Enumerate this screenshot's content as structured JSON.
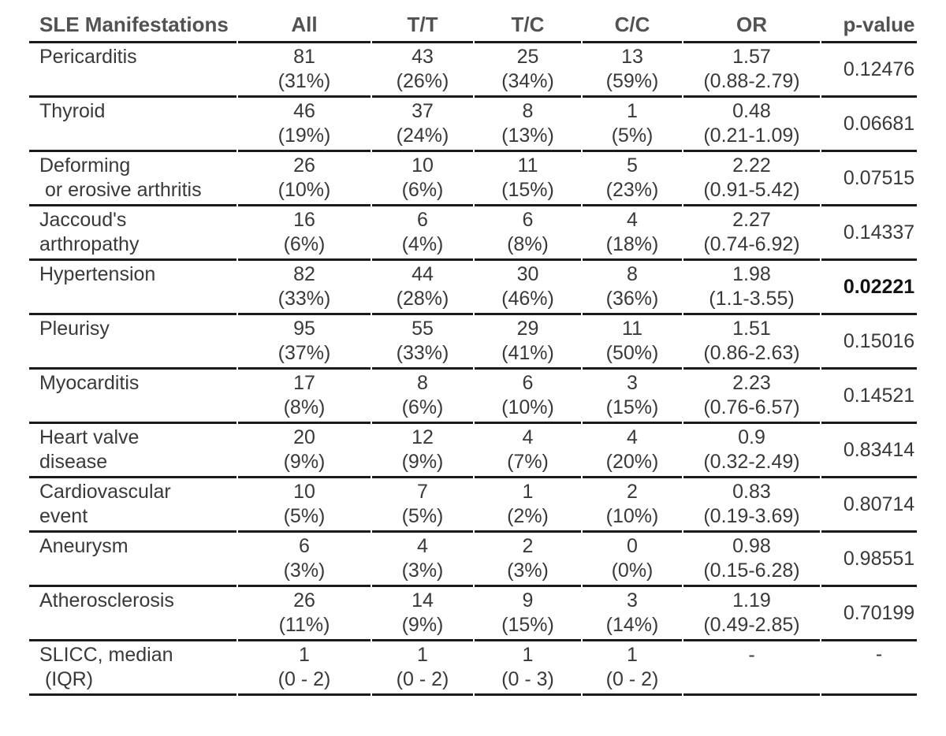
{
  "table": {
    "columns": [
      "SLE Manifestations",
      "All",
      "T/T",
      "T/C",
      "C/C",
      "OR",
      "p-value"
    ],
    "rows": [
      {
        "label_line1": "Pericarditis",
        "label_line2": "",
        "cells": [
          [
            "81",
            "(31%)"
          ],
          [
            "43",
            "(26%)"
          ],
          [
            "25",
            "(34%)"
          ],
          [
            "13",
            "(59%)"
          ],
          [
            "1.57",
            "(0.88-2.79)"
          ]
        ],
        "p": "0.12476",
        "p_bold": false
      },
      {
        "label_line1": "Thyroid",
        "label_line2": "",
        "cells": [
          [
            "46",
            "(19%)"
          ],
          [
            "37",
            "(24%)"
          ],
          [
            "8",
            "(13%)"
          ],
          [
            "1",
            "(5%)"
          ],
          [
            "0.48",
            "(0.21-1.09)"
          ]
        ],
        "p": "0.06681",
        "p_bold": false
      },
      {
        "label_line1": "Deforming",
        "label_line2": " or erosive arthritis",
        "cells": [
          [
            "26",
            "(10%)"
          ],
          [
            "10",
            "(6%)"
          ],
          [
            "11",
            "(15%)"
          ],
          [
            "5",
            "(23%)"
          ],
          [
            "2.22",
            "(0.91-5.42)"
          ]
        ],
        "p": "0.07515",
        "p_bold": false
      },
      {
        "label_line1": "Jaccoud's",
        "label_line2": "arthropathy",
        "cells": [
          [
            "16",
            "(6%)"
          ],
          [
            "6",
            "(4%)"
          ],
          [
            "6",
            "(8%)"
          ],
          [
            "4",
            "(18%)"
          ],
          [
            "2.27",
            "(0.74-6.92)"
          ]
        ],
        "p": "0.14337",
        "p_bold": false
      },
      {
        "label_line1": "Hypertension",
        "label_line2": "",
        "cells": [
          [
            "82",
            "(33%)"
          ],
          [
            "44",
            "(28%)"
          ],
          [
            "30",
            "(46%)"
          ],
          [
            "8",
            "(36%)"
          ],
          [
            "1.98",
            "(1.1-3.55)"
          ]
        ],
        "p": "0.02221",
        "p_bold": true
      },
      {
        "label_line1": "Pleurisy",
        "label_line2": "",
        "cells": [
          [
            "95",
            "(37%)"
          ],
          [
            "55",
            "(33%)"
          ],
          [
            "29",
            "(41%)"
          ],
          [
            "11",
            "(50%)"
          ],
          [
            "1.51",
            "(0.86-2.63)"
          ]
        ],
        "p": "0.15016",
        "p_bold": false
      },
      {
        "label_line1": "Myocarditis",
        "label_line2": "",
        "cells": [
          [
            "17",
            "(8%)"
          ],
          [
            "8",
            "(6%)"
          ],
          [
            "6",
            "(10%)"
          ],
          [
            "3",
            "(15%)"
          ],
          [
            "2.23",
            "(0.76-6.57)"
          ]
        ],
        "p": "0.14521",
        "p_bold": false
      },
      {
        "label_line1": "Heart valve",
        "label_line2": "disease",
        "cells": [
          [
            "20",
            "(9%)"
          ],
          [
            "12",
            "(9%)"
          ],
          [
            "4",
            "(7%)"
          ],
          [
            "4",
            "(20%)"
          ],
          [
            "0.9",
            "(0.32-2.49)"
          ]
        ],
        "p": "0.83414",
        "p_bold": false
      },
      {
        "label_line1": "Cardiovascular",
        "label_line2": "event",
        "cells": [
          [
            "10",
            "(5%)"
          ],
          [
            "7",
            "(5%)"
          ],
          [
            "1",
            "(2%)"
          ],
          [
            "2",
            "(10%)"
          ],
          [
            "0.83",
            "(0.19-3.69)"
          ]
        ],
        "p": "0.80714",
        "p_bold": false
      },
      {
        "label_line1": "Aneurysm",
        "label_line2": "",
        "cells": [
          [
            "6",
            "(3%)"
          ],
          [
            "4",
            "(3%)"
          ],
          [
            "2",
            "(3%)"
          ],
          [
            "0",
            "(0%)"
          ],
          [
            "0.98",
            "(0.15-6.28)"
          ]
        ],
        "p": "0.98551",
        "p_bold": false
      },
      {
        "label_line1": "Atherosclerosis",
        "label_line2": "",
        "cells": [
          [
            "26",
            "(11%)"
          ],
          [
            "14",
            "(9%)"
          ],
          [
            "9",
            "(15%)"
          ],
          [
            "3",
            "(14%)"
          ],
          [
            "1.19",
            "(0.49-2.85)"
          ]
        ],
        "p": "0.70199",
        "p_bold": false
      },
      {
        "label_line1": "SLICC, median",
        "label_line2": " (IQR)",
        "cells": [
          [
            "1",
            "(0 - 2)"
          ],
          [
            "1",
            "(0 - 2)"
          ],
          [
            "1",
            "(0 - 3)"
          ],
          [
            "1",
            "(0 - 2)"
          ],
          [
            "-",
            ""
          ]
        ],
        "p": "-",
        "p_bold": false
      }
    ]
  },
  "colors": {
    "header_text": "#515254",
    "body_text": "#39393b",
    "rule": "#1b1b1b",
    "background": "#ffffff"
  }
}
